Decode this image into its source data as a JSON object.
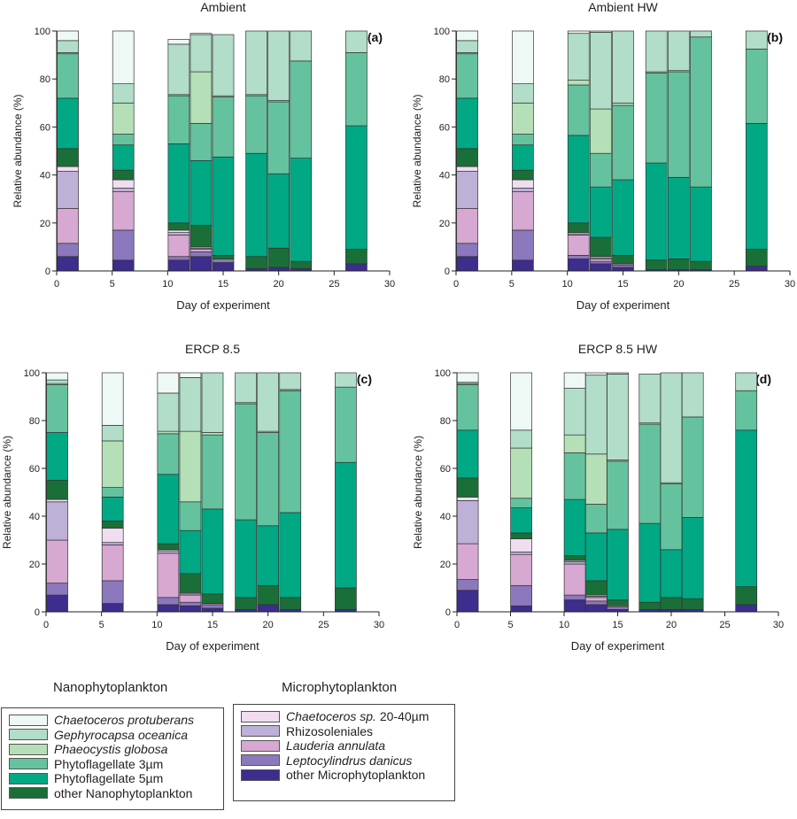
{
  "chart_data": {
    "type": "bar",
    "stacked": true,
    "xlabel": "Day of experiment",
    "ylabel": "Relative abundance (%)",
    "xlim": [
      0,
      30
    ],
    "ylim": [
      0,
      100
    ],
    "xticks": [
      "0",
      "5",
      "10",
      "15",
      "20",
      "25",
      "30"
    ],
    "yticks": [
      "0",
      "20",
      "40",
      "60",
      "80",
      "100"
    ],
    "days": [
      1,
      6,
      11,
      13,
      15,
      18,
      20,
      22,
      27
    ],
    "categories": [
      {
        "name": "other Microphytoplankton",
        "color": "#3d2d8c"
      },
      {
        "name": "Leptocylindrus danicus",
        "color": "#8c78bc"
      },
      {
        "name": "Lauderia annulata",
        "color": "#d6a8d2"
      },
      {
        "name": "Rhizosoleniales",
        "color": "#bdb1d8"
      },
      {
        "name": "Chaetoceros sp. 20-40µm",
        "color": "#f1dcf0"
      },
      {
        "name": "other Nanophytoplankton",
        "color": "#1a6f38"
      },
      {
        "name": "Phytoflagellate 5µm",
        "color": "#00a884"
      },
      {
        "name": "Phytoflagellate 3µm",
        "color": "#64c39e"
      },
      {
        "name": "Phaeocystis globosa",
        "color": "#b5dfb6"
      },
      {
        "name": "Gephyrocapsa oceanica",
        "color": "#b1ddc9"
      },
      {
        "name": "Chaetoceros protuberans",
        "color": "#eef8f5"
      }
    ],
    "panels": [
      {
        "title": "Ambient",
        "tag": "(a)",
        "series": [
          {
            "name": "other Microphytoplankton",
            "values": [
              6,
              4.5,
              4.5,
              6,
              3.5,
              1,
              1.5,
              1,
              3
            ]
          },
          {
            "name": "Leptocylindrus danicus",
            "values": [
              5.5,
              12.5,
              1.5,
              2,
              1.5,
              0,
              0,
              0,
              0
            ]
          },
          {
            "name": "Lauderia annulata",
            "values": [
              14.5,
              16,
              9,
              1,
              0,
              0,
              0,
              0,
              0
            ]
          },
          {
            "name": "Rhizosoleniales",
            "values": [
              15.5,
              1.5,
              1,
              0.5,
              0,
              0,
              0,
              0,
              0
            ]
          },
          {
            "name": "Chaetoceros sp. 20-40µm",
            "values": [
              2,
              3.5,
              1,
              0.5,
              0,
              0,
              0,
              0,
              0
            ]
          },
          {
            "name": "other Nanophytoplankton",
            "values": [
              7.5,
              4,
              3,
              9,
              1.5,
              5,
              8,
              3,
              6
            ]
          },
          {
            "name": "Phytoflagellate 5µm",
            "values": [
              21,
              10.5,
              33,
              27,
              41,
              43,
              31,
              43,
              51.5
            ]
          },
          {
            "name": "Phytoflagellate 3µm",
            "values": [
              18.5,
              4.5,
              20,
              15.5,
              25,
              24,
              30,
              40.5,
              30.5
            ]
          },
          {
            "name": "Phaeocystis globosa",
            "values": [
              0.5,
              13,
              0.5,
              21.5,
              0.5,
              0.5,
              0.5,
              0,
              0
            ]
          },
          {
            "name": "Gephyrocapsa oceanica",
            "values": [
              5,
              8,
              21,
              15.5,
              25.5,
              26.5,
              29,
              12.5,
              9
            ]
          },
          {
            "name": "Chaetoceros protuberans",
            "values": [
              4,
              22,
              2,
              0.5,
              0,
              0,
              0,
              0,
              0
            ]
          }
        ]
      },
      {
        "title": "Ambient HW",
        "tag": "(b)",
        "series": [
          {
            "name": "other Microphytoplankton",
            "values": [
              6,
              4.5,
              5,
              3,
              1.5,
              0.5,
              0.5,
              0.5,
              2
            ]
          },
          {
            "name": "Leptocylindrus danicus",
            "values": [
              5.5,
              12.5,
              1.5,
              1,
              1,
              0,
              0,
              0,
              0
            ]
          },
          {
            "name": "Lauderia annulata",
            "values": [
              14.5,
              16,
              8.5,
              1,
              0.5,
              0,
              0,
              0,
              0
            ]
          },
          {
            "name": "Rhizosoleniales",
            "values": [
              15.5,
              1.5,
              0.5,
              0.5,
              0,
              0,
              0,
              0,
              0
            ]
          },
          {
            "name": "Chaetoceros sp. 20-40µm",
            "values": [
              2,
              3.5,
              0.5,
              0.5,
              0,
              0,
              0,
              0,
              0
            ]
          },
          {
            "name": "other Nanophytoplankton",
            "values": [
              7.5,
              4,
              4,
              8,
              3.5,
              4,
              4.5,
              3.5,
              7
            ]
          },
          {
            "name": "Phytoflagellate 5µm",
            "values": [
              21,
              10.5,
              36.5,
              21,
              31.5,
              40.5,
              34,
              31,
              52.5
            ]
          },
          {
            "name": "Phytoflagellate 3µm",
            "values": [
              18.5,
              4.5,
              21,
              14,
              31,
              37.5,
              44,
              62.5,
              31
            ]
          },
          {
            "name": "Phaeocystis globosa",
            "values": [
              0.5,
              13,
              2,
              18.5,
              1,
              0.5,
              0.5,
              0,
              0
            ]
          },
          {
            "name": "Gephyrocapsa oceanica",
            "values": [
              5,
              8,
              19.5,
              32,
              30,
              17,
              16.5,
              2.5,
              7.5
            ]
          },
          {
            "name": "Chaetoceros protuberans",
            "values": [
              4,
              22,
              1,
              0.5,
              0,
              0,
              0,
              0,
              0
            ]
          }
        ]
      },
      {
        "title": "ERCP 8.5",
        "tag": "(c)",
        "series": [
          {
            "name": "other Microphytoplankton",
            "values": [
              7,
              3.5,
              3,
              2.5,
              1.5,
              1,
              3,
              1,
              1
            ]
          },
          {
            "name": "Leptocylindrus danicus",
            "values": [
              5,
              9.5,
              3,
              1.5,
              1.5,
              0,
              0,
              0,
              0
            ]
          },
          {
            "name": "Lauderia annulata",
            "values": [
              18,
              15,
              18.5,
              3,
              0.5,
              0,
              0,
              0,
              0
            ]
          },
          {
            "name": "Rhizosoleniales",
            "values": [
              16,
              1,
              1,
              0.5,
              0,
              0,
              0,
              0,
              0
            ]
          },
          {
            "name": "Chaetoceros sp. 20-40µm",
            "values": [
              1,
              6,
              0.5,
              0.5,
              0,
              0,
              0,
              0,
              0
            ]
          },
          {
            "name": "other Nanophytoplankton",
            "values": [
              8,
              3,
              2.5,
              8,
              4,
              5,
              8,
              5,
              9
            ]
          },
          {
            "name": "Phytoflagellate 5µm",
            "values": [
              20,
              10,
              29,
              18,
              35.5,
              32.5,
              25,
              35.5,
              52.5
            ]
          },
          {
            "name": "Phytoflagellate 3µm",
            "values": [
              20,
              4,
              17,
              12,
              31,
              48.5,
              39,
              51,
              31.5
            ]
          },
          {
            "name": "Phaeocystis globosa",
            "values": [
              0.5,
              19.5,
              1,
              29.5,
              1,
              0.5,
              0.5,
              0.5,
              0
            ]
          },
          {
            "name": "Gephyrocapsa oceanica",
            "values": [
              1.5,
              6.5,
              16,
              22.5,
              25,
              12.5,
              24.5,
              7,
              6
            ]
          },
          {
            "name": "Chaetoceros protuberans",
            "values": [
              3,
              22,
              8.5,
              2,
              0,
              0,
              0,
              0,
              0
            ]
          }
        ]
      },
      {
        "title": "ERCP 8.5 HW",
        "tag": "(d)",
        "series": [
          {
            "name": "other Microphytoplankton",
            "values": [
              9,
              2.5,
              5,
              3,
              1,
              1,
              1,
              1,
              3
            ]
          },
          {
            "name": "Leptocylindrus danicus",
            "values": [
              4.5,
              8.5,
              2,
              1.5,
              1,
              0,
              0,
              0,
              0
            ]
          },
          {
            "name": "Lauderia annulata",
            "values": [
              15,
              13,
              13,
              1.5,
              0.5,
              0,
              0,
              0,
              0
            ]
          },
          {
            "name": "Rhizosoleniales",
            "values": [
              18,
              1,
              1,
              0.5,
              0,
              0,
              0,
              0,
              0
            ]
          },
          {
            "name": "Chaetoceros sp. 20-40µm",
            "values": [
              1.5,
              5.5,
              0.5,
              0.5,
              0,
              0,
              0,
              0,
              0
            ]
          },
          {
            "name": "other Nanophytoplankton",
            "values": [
              8,
              2.5,
              2,
              6,
              2.5,
              3,
              5,
              4.5,
              7.5
            ]
          },
          {
            "name": "Phytoflagellate 5µm",
            "values": [
              20,
              10.5,
              23.5,
              20,
              29.5,
              33,
              20,
              34,
              65.5
            ]
          },
          {
            "name": "Phytoflagellate 3µm",
            "values": [
              19,
              4,
              19.5,
              12,
              28.5,
              41.5,
              27.5,
              42,
              16.5
            ]
          },
          {
            "name": "Phaeocystis globosa",
            "values": [
              0.5,
              21,
              7.5,
              21,
              0.5,
              0.5,
              0.5,
              0,
              0
            ]
          },
          {
            "name": "Gephyrocapsa oceanica",
            "values": [
              0.5,
              7.5,
              19.5,
              33,
              36,
              20.5,
              46,
              18.5,
              7.5
            ]
          },
          {
            "name": "Chaetoceros protuberans",
            "values": [
              4,
              24,
              6.5,
              1,
              0.5,
              0,
              0,
              0,
              0
            ]
          }
        ]
      }
    ]
  },
  "legend": {
    "nano_heading": "Nanophytoplankton",
    "micro_heading": "Microphytoplankton",
    "nano_items": [
      {
        "label": "Chaetoceros protuberans",
        "italic": true,
        "color": "#eef8f5"
      },
      {
        "label": "Gephyrocapsa oceanica",
        "italic": true,
        "color": "#b1ddc9"
      },
      {
        "label": "Phaeocystis globosa",
        "italic": true,
        "color": "#b5dfb6"
      },
      {
        "label": "Phytoflagellate 3µm",
        "italic": false,
        "color": "#64c39e"
      },
      {
        "label": "Phytoflagellate 5µm",
        "italic": false,
        "color": "#00a884"
      },
      {
        "label": "other Nanophytoplankton",
        "italic": false,
        "color": "#1a6f38"
      }
    ],
    "micro_items": [
      {
        "label": "Chaetoceros sp.",
        "suffix": " 20-40µm",
        "italic": true,
        "color": "#f1dcf0"
      },
      {
        "label": "Rhizosoleniales",
        "italic": false,
        "color": "#bdb1d8"
      },
      {
        "label": "Lauderia annulata",
        "italic": true,
        "color": "#d6a8d2"
      },
      {
        "label": "Leptocylindrus danicus",
        "italic": true,
        "color": "#8c78bc"
      },
      {
        "label": "other Microphytoplankton",
        "italic": false,
        "color": "#3d2d8c"
      }
    ]
  }
}
